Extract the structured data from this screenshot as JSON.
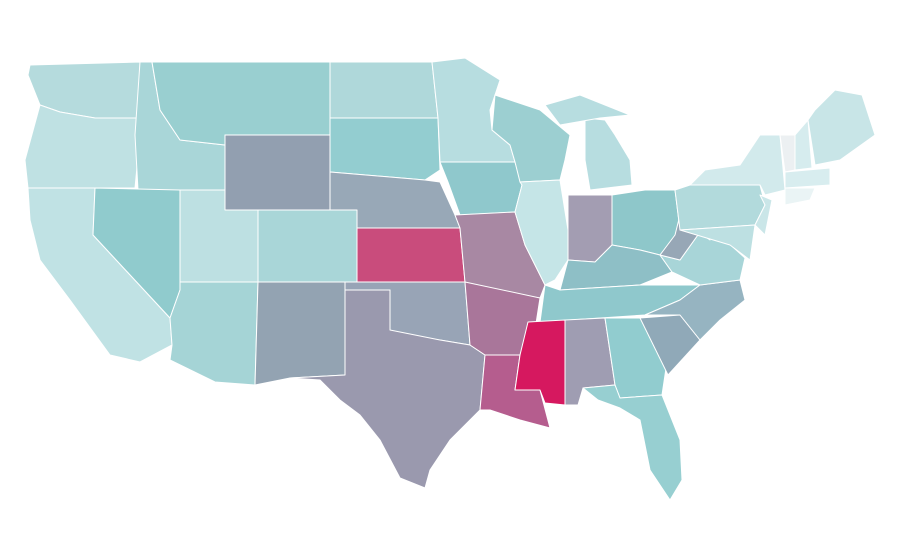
{
  "regions": [
    {
      "color": "#b5dbdd"
    },
    {
      "color": "#bfe1e3"
    },
    {
      "color": "#c0e2e4"
    },
    {
      "color": "#a9d6d8"
    },
    {
      "color": "#90cbcd"
    },
    {
      "color": "#99cfd0"
    },
    {
      "color": "#929fb0"
    },
    {
      "color": "#bde0e2"
    },
    {
      "color": "#a5d4d6"
    },
    {
      "color": "#a9d6d8"
    },
    {
      "color": "#93a3b2"
    },
    {
      "color": "#afd8da"
    },
    {
      "color": "#93cdd0"
    },
    {
      "color": "#98a8b7"
    },
    {
      "color": "#c94c7c"
    },
    {
      "color": "#98a4b6"
    },
    {
      "color": "#9a99ae"
    },
    {
      "color": "#b7dde0"
    },
    {
      "color": "#8fc8cc"
    },
    {
      "color": "#a888a3"
    },
    {
      "color": "#a9769a"
    },
    {
      "color": "#b55d8e"
    },
    {
      "color": "#9ccfd1"
    },
    {
      "color": "#c5e5e7"
    },
    {
      "color": "#b7dde0"
    },
    {
      "color": "#b7dde0"
    },
    {
      "color": "#a39db2"
    },
    {
      "color": "#8ec7ca"
    },
    {
      "color": "#8ebfc6"
    },
    {
      "color": "#8fc8cc"
    },
    {
      "color": "#d6185f"
    },
    {
      "color": "#9f9db2"
    },
    {
      "color": "#91cccf"
    },
    {
      "color": "#97cfd1"
    },
    {
      "color": "#90a9b8"
    },
    {
      "color": "#96b4c1"
    },
    {
      "color": "#a8d5d8"
    },
    {
      "color": "#97a7b6"
    },
    {
      "color": "#b2dadc"
    },
    {
      "color": "#d2eaec"
    },
    {
      "color": "#cae6e8"
    },
    {
      "color": "#bde0e2"
    },
    {
      "color": "#ecf0f2"
    },
    {
      "color": "#d6ecee"
    },
    {
      "color": "#c8e5e7"
    },
    {
      "color": "#d8edef"
    },
    {
      "color": "#eaf4f5"
    }
  ]
}
